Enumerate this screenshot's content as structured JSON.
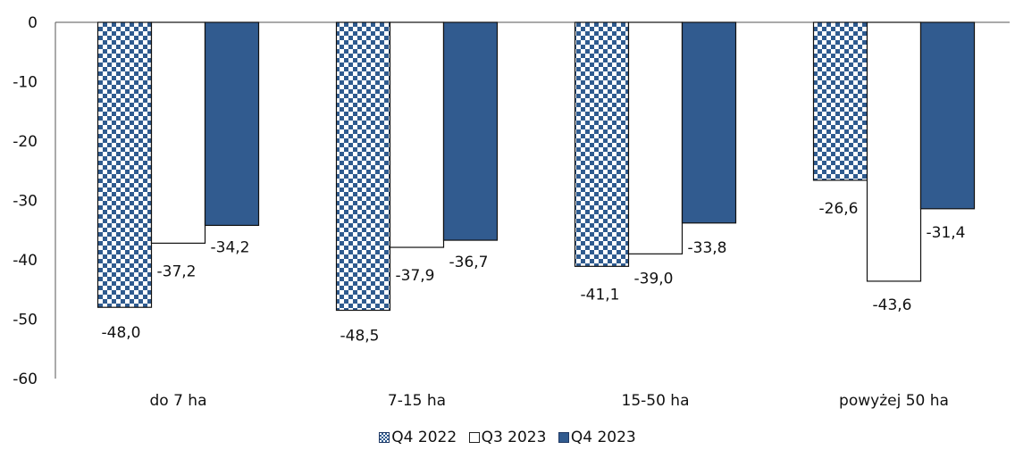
{
  "colors": {
    "q4_2022": "#2f5b8f",
    "q3_2023": "#ffffff",
    "q4_2023": "#315b8f",
    "outline": "#111111"
  },
  "chart_data": {
    "type": "bar",
    "categories": [
      "do 7 ha",
      "7-15 ha",
      "15-50 ha",
      "powyżej 50 ha"
    ],
    "series": [
      {
        "name": "Q4 2022",
        "values": [
          -48.0,
          -48.5,
          -41.1,
          -26.6
        ],
        "labels": [
          "-48,0",
          "-48,5",
          "-41,1",
          "-26,6"
        ],
        "style": "checkered"
      },
      {
        "name": "Q3 2023",
        "values": [
          -37.2,
          -37.9,
          -39.0,
          -43.6
        ],
        "labels": [
          "-37,2",
          "-37,9",
          "-39,0",
          "-43,6"
        ],
        "style": "white"
      },
      {
        "name": "Q4 2023",
        "values": [
          -34.2,
          -36.7,
          -33.8,
          -31.4
        ],
        "labels": [
          "-34,2",
          "-36,7",
          "-33,8",
          "-31,4"
        ],
        "style": "solid"
      }
    ],
    "yticks": [
      "0",
      "-10",
      "-20",
      "-30",
      "-40",
      "-50",
      "-60"
    ],
    "ylim": [
      -60,
      0
    ],
    "title": "",
    "xlabel": "",
    "ylabel": "",
    "legend_position": "bottom",
    "grid": false
  }
}
